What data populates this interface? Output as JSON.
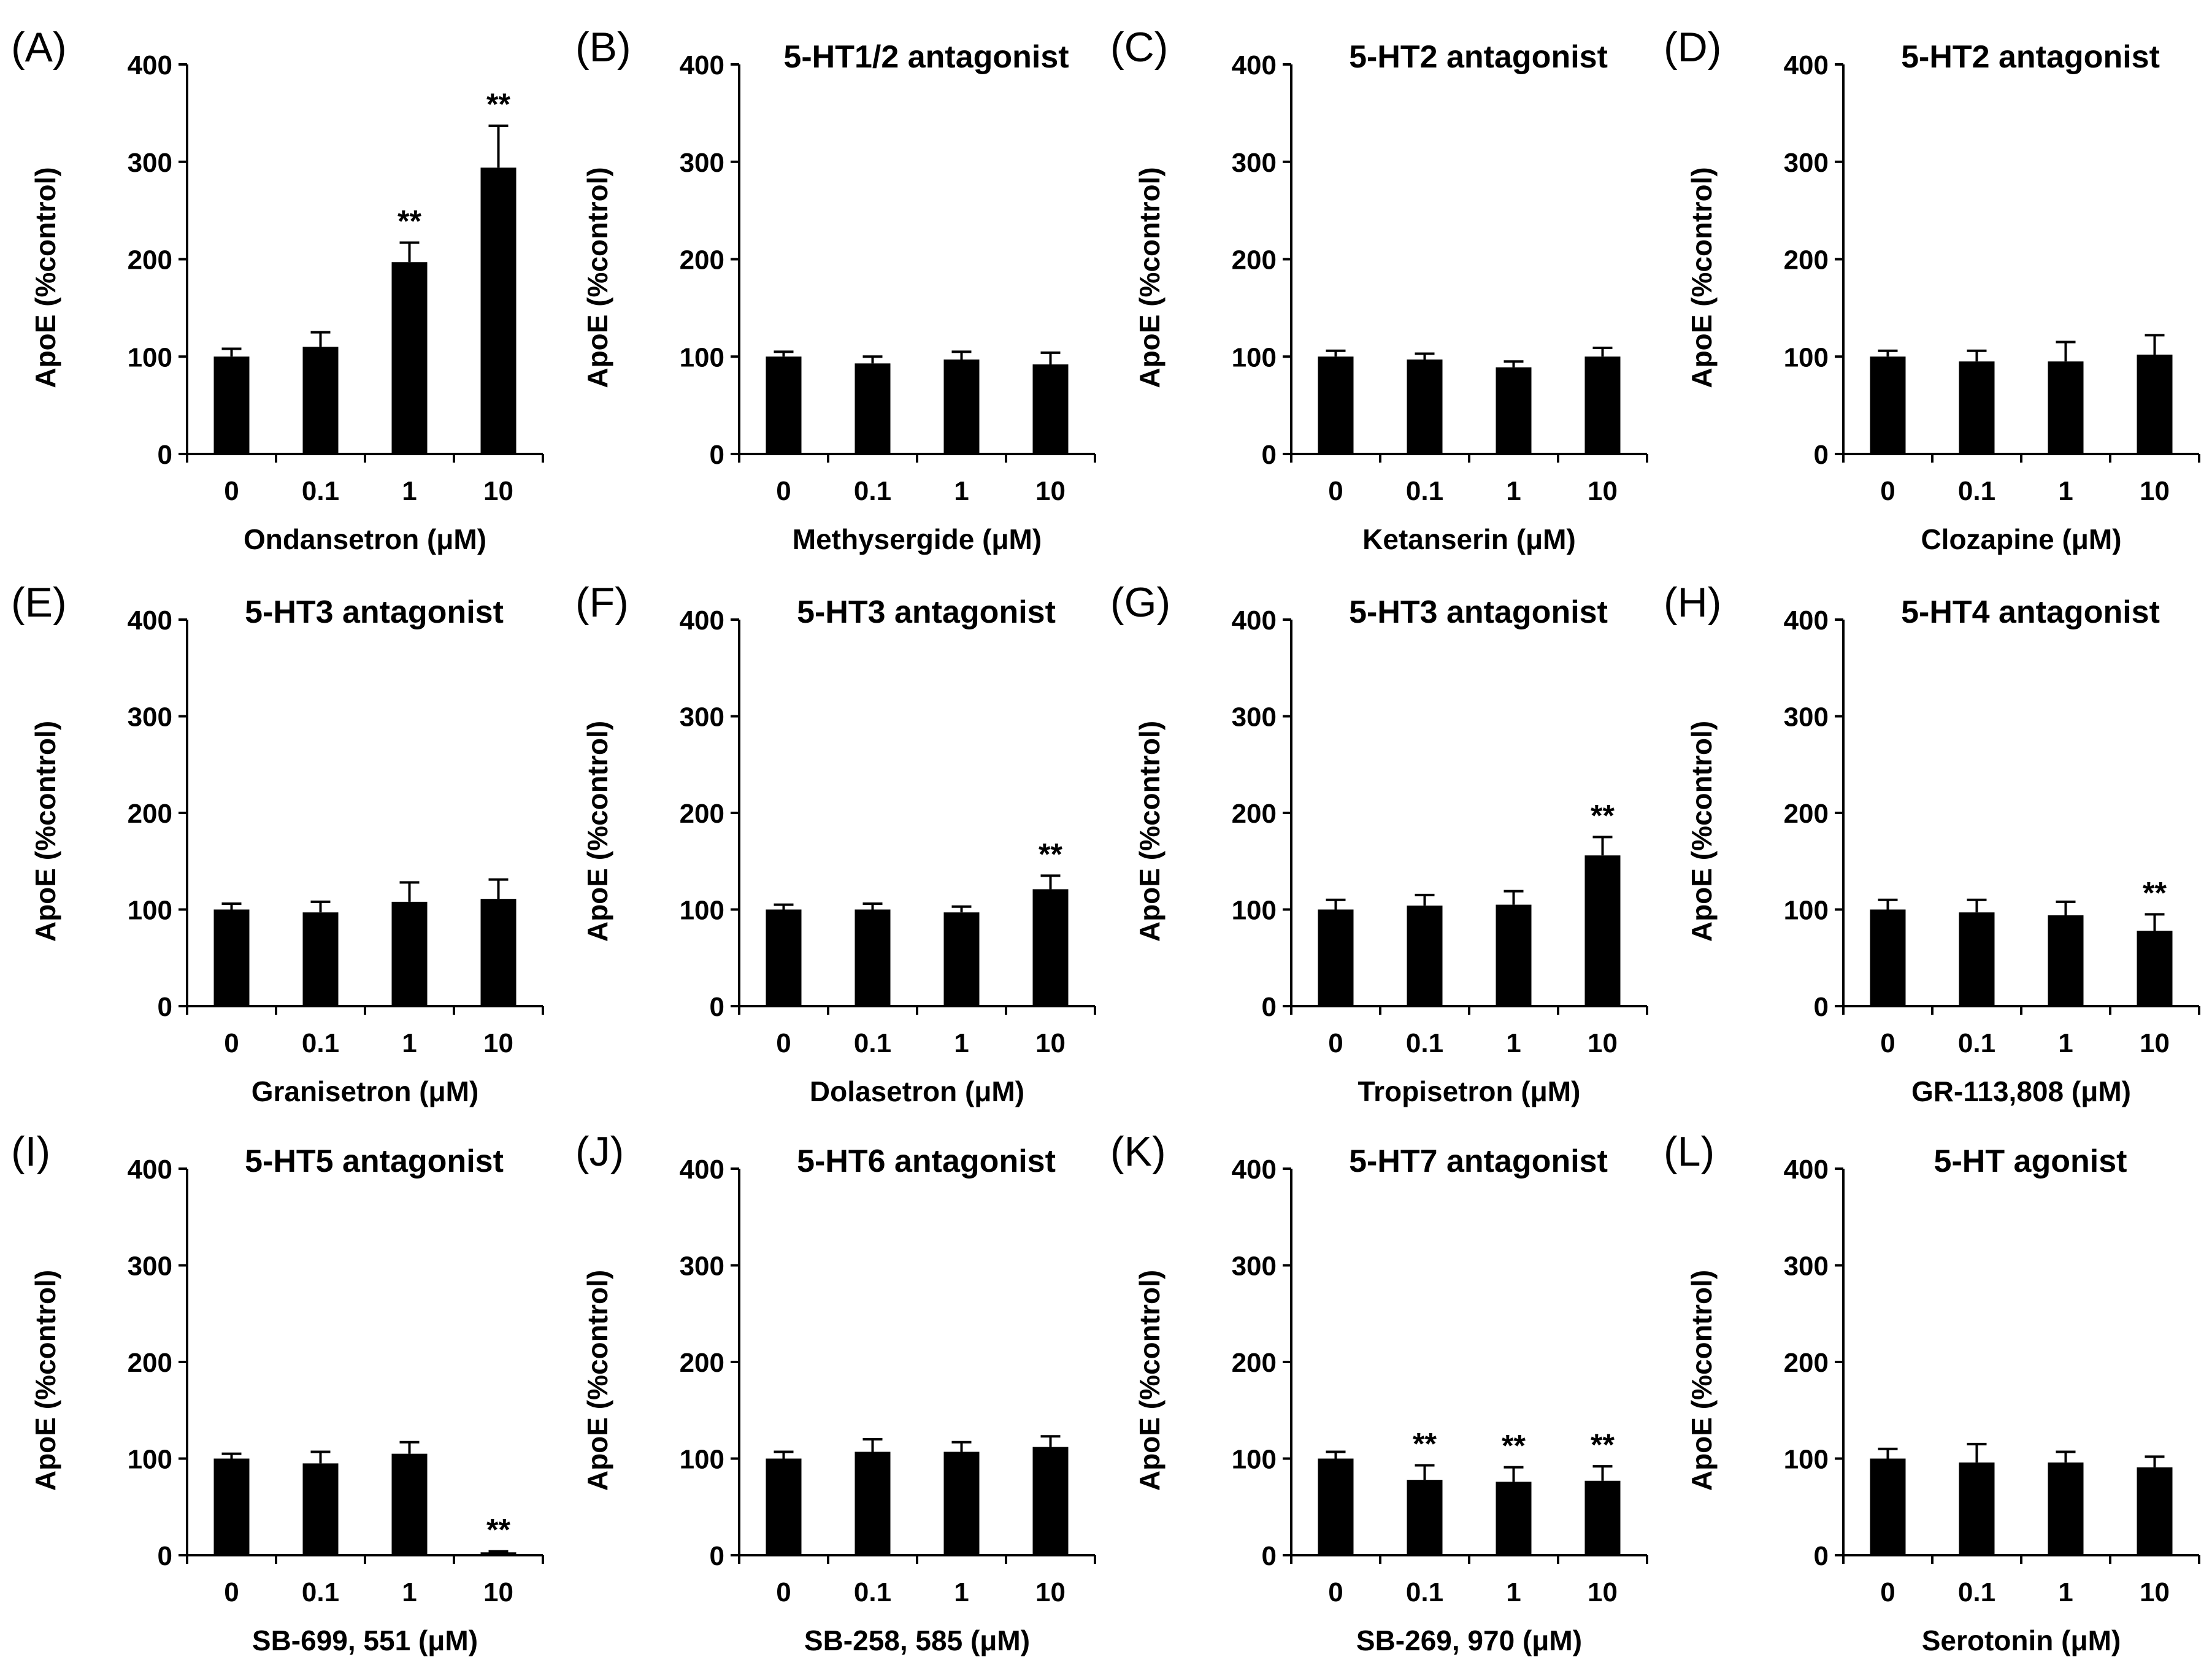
{
  "chart_data": [
    {
      "type": "bar",
      "panel": "(A)",
      "title": "",
      "xlabel": "Ondansetron (μM)",
      "ylabel": "ApoE (%control)",
      "ylim": [
        0,
        400
      ],
      "yticks": [
        "0",
        "100",
        "200",
        "300",
        "400"
      ],
      "categories": [
        "0",
        "0.1",
        "1",
        "10"
      ],
      "values": [
        100,
        110,
        197,
        294
      ],
      "errors": [
        8,
        15,
        20,
        43
      ],
      "significance": [
        "",
        "",
        "**",
        "**"
      ]
    },
    {
      "type": "bar",
      "panel": "(B)",
      "title": "5-HT1/2 antagonist",
      "xlabel": "Methysergide (μM)",
      "ylabel": "ApoE (%control)",
      "ylim": [
        0,
        400
      ],
      "yticks": [
        "0",
        "100",
        "200",
        "300",
        "400"
      ],
      "categories": [
        "0",
        "0.1",
        "1",
        "10"
      ],
      "values": [
        100,
        93,
        97,
        92
      ],
      "errors": [
        5,
        7,
        8,
        12
      ],
      "significance": [
        "",
        "",
        "",
        ""
      ]
    },
    {
      "type": "bar",
      "panel": "(C)",
      "title": "5-HT2 antagonist",
      "xlabel": "Ketanserin (μM)",
      "ylabel": "ApoE (%control)",
      "ylim": [
        0,
        400
      ],
      "yticks": [
        "0",
        "100",
        "200",
        "300",
        "400"
      ],
      "categories": [
        "0",
        "0.1",
        "1",
        "10"
      ],
      "values": [
        100,
        97,
        89,
        100
      ],
      "errors": [
        6,
        6,
        6,
        9
      ],
      "significance": [
        "",
        "",
        "",
        ""
      ]
    },
    {
      "type": "bar",
      "panel": "(D)",
      "title": "5-HT2 antagonist",
      "xlabel": "Clozapine (μM)",
      "ylabel": "ApoE (%control)",
      "ylim": [
        0,
        400
      ],
      "yticks": [
        "0",
        "100",
        "200",
        "300",
        "400"
      ],
      "categories": [
        "0",
        "0.1",
        "1",
        "10"
      ],
      "values": [
        100,
        95,
        95,
        102
      ],
      "errors": [
        6,
        11,
        20,
        20
      ],
      "significance": [
        "",
        "",
        "",
        ""
      ]
    },
    {
      "type": "bar",
      "panel": "(E)",
      "title": "5-HT3 antagonist",
      "xlabel": "Granisetron (μM)",
      "ylabel": "ApoE (%control)",
      "ylim": [
        0,
        400
      ],
      "yticks": [
        "0",
        "100",
        "200",
        "300",
        "400"
      ],
      "categories": [
        "0",
        "0.1",
        "1",
        "10"
      ],
      "values": [
        100,
        97,
        108,
        111
      ],
      "errors": [
        6,
        11,
        20,
        20
      ],
      "significance": [
        "",
        "",
        "",
        ""
      ]
    },
    {
      "type": "bar",
      "panel": "(F)",
      "title": "5-HT3 antagonist",
      "xlabel": "Dolasetron (μM)",
      "ylabel": "ApoE (%control)",
      "ylim": [
        0,
        400
      ],
      "yticks": [
        "0",
        "100",
        "200",
        "300",
        "400"
      ],
      "categories": [
        "0",
        "0.1",
        "1",
        "10"
      ],
      "values": [
        100,
        100,
        97,
        121
      ],
      "errors": [
        5,
        6,
        6,
        14
      ],
      "significance": [
        "",
        "",
        "",
        "**"
      ]
    },
    {
      "type": "bar",
      "panel": "(G)",
      "title": "5-HT3 antagonist",
      "xlabel": "Tropisetron (μM)",
      "ylabel": "ApoE (%control)",
      "ylim": [
        0,
        400
      ],
      "yticks": [
        "0",
        "100",
        "200",
        "300",
        "400"
      ],
      "categories": [
        "0",
        "0.1",
        "1",
        "10"
      ],
      "values": [
        100,
        104,
        105,
        156
      ],
      "errors": [
        10,
        11,
        14,
        19
      ],
      "significance": [
        "",
        "",
        "",
        "**"
      ]
    },
    {
      "type": "bar",
      "panel": "(H)",
      "title": "5-HT4 antagonist",
      "xlabel": "GR-113,808 (μM)",
      "ylabel": "ApoE (%control)",
      "ylim": [
        0,
        400
      ],
      "yticks": [
        "0",
        "100",
        "200",
        "300",
        "400"
      ],
      "categories": [
        "0",
        "0.1",
        "1",
        "10"
      ],
      "values": [
        100,
        97,
        94,
        78
      ],
      "errors": [
        10,
        13,
        14,
        17
      ],
      "significance": [
        "",
        "",
        "",
        "**"
      ]
    },
    {
      "type": "bar",
      "panel": "(I)",
      "title": "5-HT5 antagonist",
      "xlabel": "SB-699, 551 (μM)",
      "ylabel": "ApoE (%control)",
      "ylim": [
        0,
        400
      ],
      "yticks": [
        "0",
        "100",
        "200",
        "300",
        "400"
      ],
      "categories": [
        "0",
        "0.1",
        "1",
        "10"
      ],
      "values": [
        100,
        95,
        105,
        3
      ],
      "errors": [
        5,
        12,
        12,
        1
      ],
      "significance": [
        "",
        "",
        "",
        "**"
      ]
    },
    {
      "type": "bar",
      "panel": "(J)",
      "title": "5-HT6 antagonist",
      "xlabel": "SB-258, 585 (μM)",
      "ylabel": "ApoE (%control)",
      "ylim": [
        0,
        400
      ],
      "yticks": [
        "0",
        "100",
        "200",
        "300",
        "400"
      ],
      "categories": [
        "0",
        "0.1",
        "1",
        "10"
      ],
      "values": [
        100,
        107,
        107,
        112
      ],
      "errors": [
        7,
        13,
        10,
        11
      ],
      "significance": [
        "",
        "",
        "",
        ""
      ]
    },
    {
      "type": "bar",
      "panel": "(K)",
      "title": "5-HT7 antagonist",
      "xlabel": "SB-269, 970 (μM)",
      "ylabel": "ApoE (%control)",
      "ylim": [
        0,
        400
      ],
      "yticks": [
        "0",
        "100",
        "200",
        "300",
        "400"
      ],
      "categories": [
        "0",
        "0.1",
        "1",
        "10"
      ],
      "values": [
        100,
        78,
        76,
        77
      ],
      "errors": [
        7,
        15,
        15,
        15
      ],
      "significance": [
        "",
        "**",
        "**",
        "**"
      ]
    },
    {
      "type": "bar",
      "panel": "(L)",
      "title": "5-HT agonist",
      "xlabel": "Serotonin (μM)",
      "ylabel": "ApoE (%control)",
      "ylim": [
        0,
        400
      ],
      "yticks": [
        "0",
        "100",
        "200",
        "300",
        "400"
      ],
      "categories": [
        "0",
        "0.1",
        "1",
        "10"
      ],
      "values": [
        100,
        96,
        96,
        91
      ],
      "errors": [
        10,
        19,
        11,
        11
      ],
      "significance": [
        "",
        "",
        "",
        ""
      ]
    }
  ]
}
